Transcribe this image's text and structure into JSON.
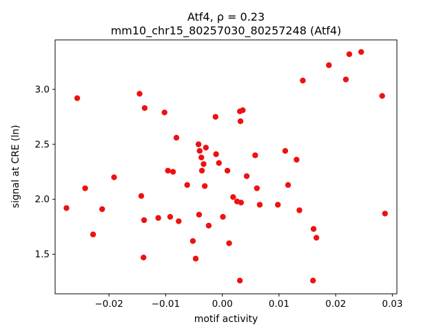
{
  "figure": {
    "background": "#ffffff"
  },
  "chart_data": {
    "type": "scatter",
    "title": "Atf4, ρ = 0.23",
    "subtitle": "mm10_chr15_80257030_80257248 (Atf4)",
    "xlabel": "motif activity",
    "ylabel": "signal at CRE (ln)",
    "xlim": [
      -0.0295,
      0.0308
    ],
    "ylim": [
      1.14,
      3.45
    ],
    "grid": false,
    "legend": null,
    "marker_color": "#ee1111",
    "marker_radius": 4.2,
    "xticks": [
      {
        "value": -0.02,
        "label": "−0.02"
      },
      {
        "value": -0.01,
        "label": "−0.01"
      },
      {
        "value": 0.0,
        "label": "0.00"
      },
      {
        "value": 0.01,
        "label": "0.01"
      },
      {
        "value": 0.02,
        "label": "0.02"
      },
      {
        "value": 0.03,
        "label": "0.03"
      }
    ],
    "yticks": [
      {
        "value": 1.5,
        "label": "1.5"
      },
      {
        "value": 2.0,
        "label": "2.0"
      },
      {
        "value": 2.5,
        "label": "2.5"
      },
      {
        "value": 3.0,
        "label": "3.0"
      }
    ],
    "points": [
      [
        -0.0275,
        1.92
      ],
      [
        -0.0256,
        2.92
      ],
      [
        -0.0242,
        2.1
      ],
      [
        -0.0228,
        1.68
      ],
      [
        -0.0212,
        1.91
      ],
      [
        -0.0191,
        2.2
      ],
      [
        -0.0146,
        2.96
      ],
      [
        -0.0137,
        2.83
      ],
      [
        -0.0143,
        2.03
      ],
      [
        -0.0138,
        1.81
      ],
      [
        -0.0139,
        1.47
      ],
      [
        -0.0113,
        1.83
      ],
      [
        -0.0102,
        2.79
      ],
      [
        -0.0096,
        2.26
      ],
      [
        -0.0087,
        2.25
      ],
      [
        -0.0092,
        1.84
      ],
      [
        -0.0081,
        2.56
      ],
      [
        -0.0077,
        1.8
      ],
      [
        -0.0062,
        2.13
      ],
      [
        -0.0052,
        1.62
      ],
      [
        -0.0047,
        1.46
      ],
      [
        -0.0042,
        2.5
      ],
      [
        -0.004,
        2.44
      ],
      [
        -0.0037,
        2.38
      ],
      [
        -0.0033,
        2.32
      ],
      [
        -0.0036,
        2.26
      ],
      [
        -0.0041,
        1.86
      ],
      [
        -0.0031,
        2.12
      ],
      [
        -0.0029,
        2.47
      ],
      [
        -0.0024,
        1.76
      ],
      [
        -0.0012,
        2.75
      ],
      [
        -0.0011,
        2.41
      ],
      [
        -0.0006,
        2.33
      ],
      [
        0.0001,
        1.84
      ],
      [
        0.0009,
        2.26
      ],
      [
        0.0012,
        1.6
      ],
      [
        0.0019,
        2.02
      ],
      [
        0.0026,
        1.98
      ],
      [
        0.0031,
        2.8
      ],
      [
        0.0036,
        2.81
      ],
      [
        0.0032,
        2.71
      ],
      [
        0.0033,
        1.97
      ],
      [
        0.0031,
        1.26
      ],
      [
        0.0043,
        2.21
      ],
      [
        0.0058,
        2.4
      ],
      [
        0.0061,
        2.1
      ],
      [
        0.0066,
        1.95
      ],
      [
        0.0098,
        1.95
      ],
      [
        0.0111,
        2.44
      ],
      [
        0.0116,
        2.13
      ],
      [
        0.0131,
        2.36
      ],
      [
        0.0136,
        1.9
      ],
      [
        0.0142,
        3.08
      ],
      [
        0.0161,
        1.73
      ],
      [
        0.0166,
        1.65
      ],
      [
        0.016,
        1.26
      ],
      [
        0.0188,
        3.22
      ],
      [
        0.0218,
        3.09
      ],
      [
        0.0224,
        3.32
      ],
      [
        0.0245,
        3.34
      ],
      [
        0.0282,
        2.94
      ],
      [
        0.0287,
        1.87
      ]
    ]
  }
}
